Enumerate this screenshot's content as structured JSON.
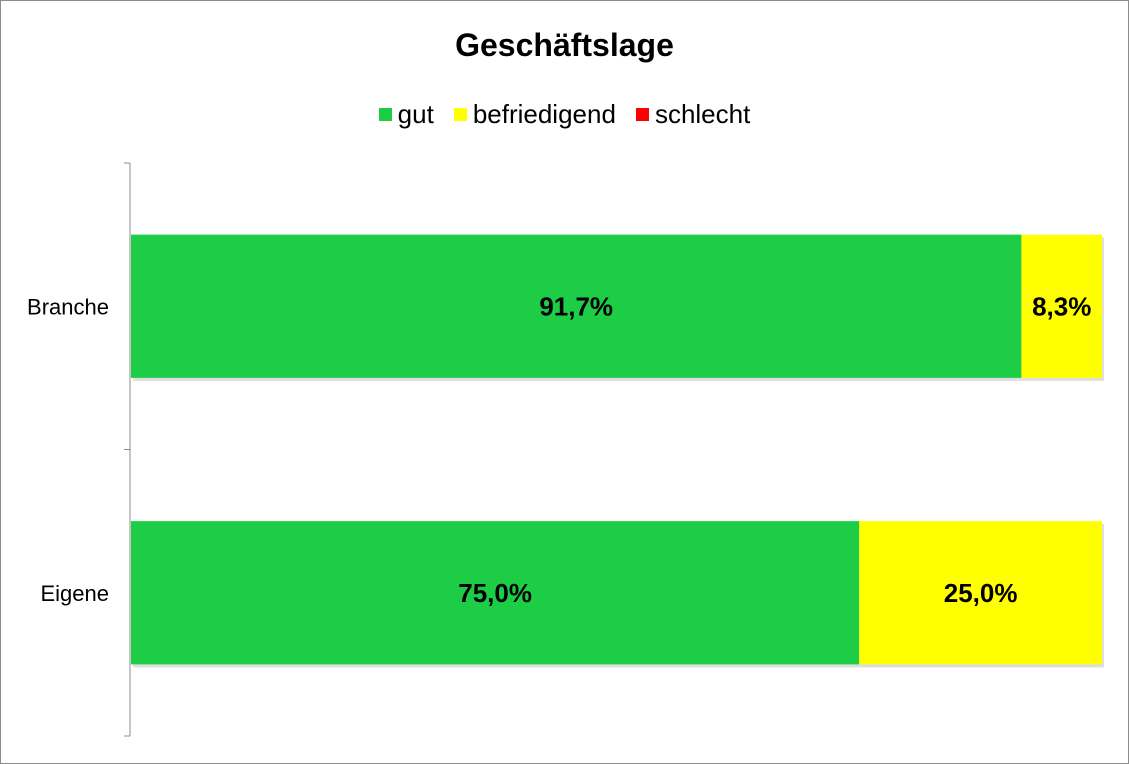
{
  "chart_data": {
    "type": "bar",
    "orientation": "horizontal",
    "stacked": true,
    "title": "Geschäftslage",
    "categories": [
      "Branche",
      "Eigene"
    ],
    "series": [
      {
        "name": "gut",
        "color": "#1ecd46",
        "values": [
          91.7,
          75.0
        ],
        "labels": [
          "91,7%",
          "75,0%"
        ]
      },
      {
        "name": "befriedigend",
        "color": "#ffff00",
        "values": [
          8.3,
          25.0
        ],
        "labels": [
          "8,3%",
          "25,0%"
        ]
      },
      {
        "name": "schlecht",
        "color": "#ff0000",
        "values": [
          0,
          0
        ],
        "labels": [
          "",
          ""
        ]
      }
    ],
    "xlim": [
      0,
      100
    ],
    "legend_position": "top",
    "grid": false
  }
}
